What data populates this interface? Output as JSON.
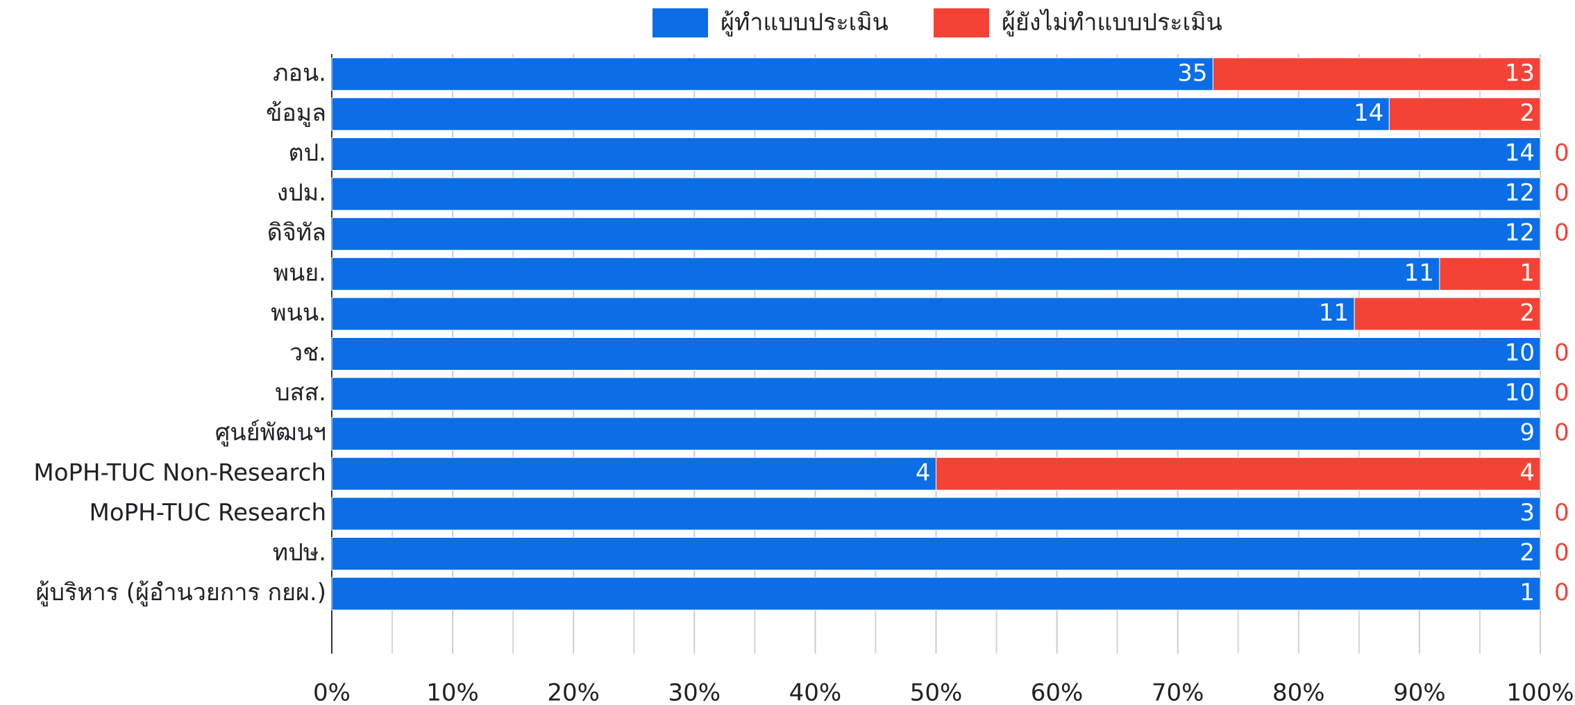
{
  "chart_data": {
    "type": "stacked_percent_bar_horizontal",
    "categories": [
      "ภอน.",
      "ข้อมูล",
      "ตป.",
      "งปม.",
      "ดิจิทัล",
      "พนย.",
      "พนน.",
      "วช.",
      "บสส.",
      "ศูนย์พัฒนฯ",
      "MoPH-TUC Non-Research",
      "MoPH-TUC Research",
      "ทปษ.",
      "ผู้บริหาร (ผู้อำนวยการ กยผ.)"
    ],
    "series": [
      {
        "name": "ผู้ทำแบบประเมิน",
        "color": "#0b6ee6",
        "values": [
          35,
          14,
          14,
          12,
          12,
          11,
          11,
          10,
          10,
          9,
          4,
          3,
          2,
          1
        ]
      },
      {
        "name": "ผู้ยังไม่ทำแบบประเมิน",
        "color": "#f44336",
        "values": [
          13,
          2,
          0,
          0,
          0,
          1,
          2,
          0,
          0,
          0,
          4,
          0,
          0,
          0
        ]
      }
    ],
    "xlim": [
      0,
      100
    ],
    "xticks": [
      {
        "value": 0,
        "label": "0%"
      },
      {
        "value": 10,
        "label": "10%"
      },
      {
        "value": 20,
        "label": "20%"
      },
      {
        "value": 30,
        "label": "30%"
      },
      {
        "value": 40,
        "label": "40%"
      },
      {
        "value": 50,
        "label": "50%"
      },
      {
        "value": 60,
        "label": "60%"
      },
      {
        "value": 70,
        "label": "70%"
      },
      {
        "value": 80,
        "label": "80%"
      },
      {
        "value": 90,
        "label": "90%"
      },
      {
        "value": 100,
        "label": "100%"
      }
    ],
    "grid": true,
    "legend": "top"
  }
}
